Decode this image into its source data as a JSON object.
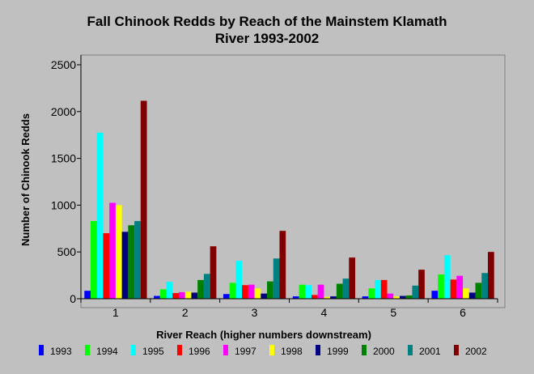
{
  "chart_data": {
    "type": "bar",
    "title_lines": [
      "Fall Chinook Redds by Reach of the Mainstem Klamath",
      "River 1993-2002"
    ],
    "xlabel": "River Reach (higher numbers downstream)",
    "ylabel": "Number of Chinook Redds",
    "categories": [
      "1",
      "2",
      "3",
      "4",
      "5",
      "6"
    ],
    "ylim": [
      0,
      2500
    ],
    "yticks": [
      0,
      500,
      1000,
      1500,
      2000,
      2500
    ],
    "grid": false,
    "legend_position": "bottom",
    "series": [
      {
        "name": "1993",
        "color": "#0000ff",
        "values": [
          85,
          30,
          50,
          25,
          25,
          85
        ]
      },
      {
        "name": "1994",
        "color": "#00ff00",
        "values": [
          830,
          100,
          170,
          150,
          110,
          260
        ]
      },
      {
        "name": "1995",
        "color": "#00ffff",
        "values": [
          1775,
          180,
          405,
          145,
          200,
          465
        ]
      },
      {
        "name": "1996",
        "color": "#ff0000",
        "values": [
          700,
          60,
          145,
          40,
          200,
          205
        ]
      },
      {
        "name": "1997",
        "color": "#ff00ff",
        "values": [
          1025,
          70,
          150,
          150,
          55,
          245
        ]
      },
      {
        "name": "1998",
        "color": "#ffff00",
        "values": [
          1000,
          75,
          110,
          20,
          25,
          110
        ]
      },
      {
        "name": "1999",
        "color": "#000080",
        "values": [
          715,
          65,
          55,
          25,
          30,
          65
        ]
      },
      {
        "name": "2000",
        "color": "#008000",
        "values": [
          785,
          200,
          185,
          160,
          35,
          170
        ]
      },
      {
        "name": "2001",
        "color": "#008080",
        "values": [
          830,
          265,
          430,
          215,
          140,
          275
        ]
      },
      {
        "name": "2002",
        "color": "#800000",
        "values": [
          2115,
          560,
          725,
          440,
          310,
          500
        ]
      }
    ]
  }
}
